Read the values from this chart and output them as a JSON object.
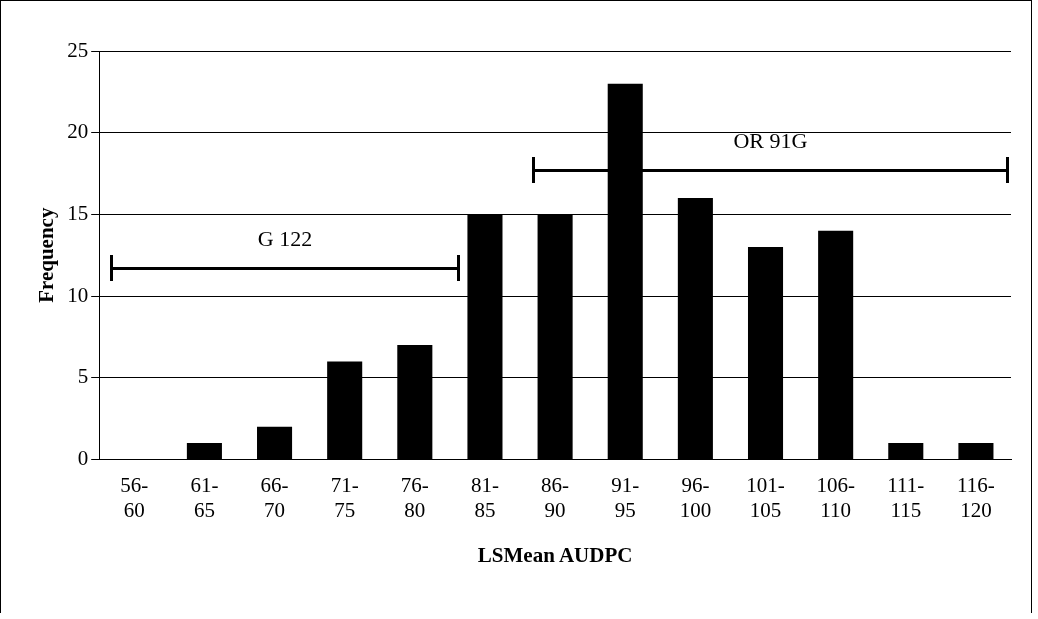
{
  "chart_data": {
    "type": "bar",
    "xlabel": "LSMean AUDPC",
    "ylabel": "Frequency",
    "categories": [
      "56-60",
      "61-65",
      "66-70",
      "71-75",
      "76-80",
      "81-85",
      "86-90",
      "91-95",
      "96-100",
      "101-105",
      "106-110",
      "111-115",
      "116-120"
    ],
    "values": [
      0,
      1,
      2,
      6,
      7,
      15,
      15,
      23,
      16,
      13,
      14,
      1,
      1
    ],
    "color": "#000000",
    "ylim": [
      0,
      25
    ],
    "yticks": [
      0,
      5,
      10,
      15,
      20,
      25
    ],
    "grid": "y",
    "legend": false,
    "annotations": [
      "G 122",
      "OR 91G"
    ]
  }
}
